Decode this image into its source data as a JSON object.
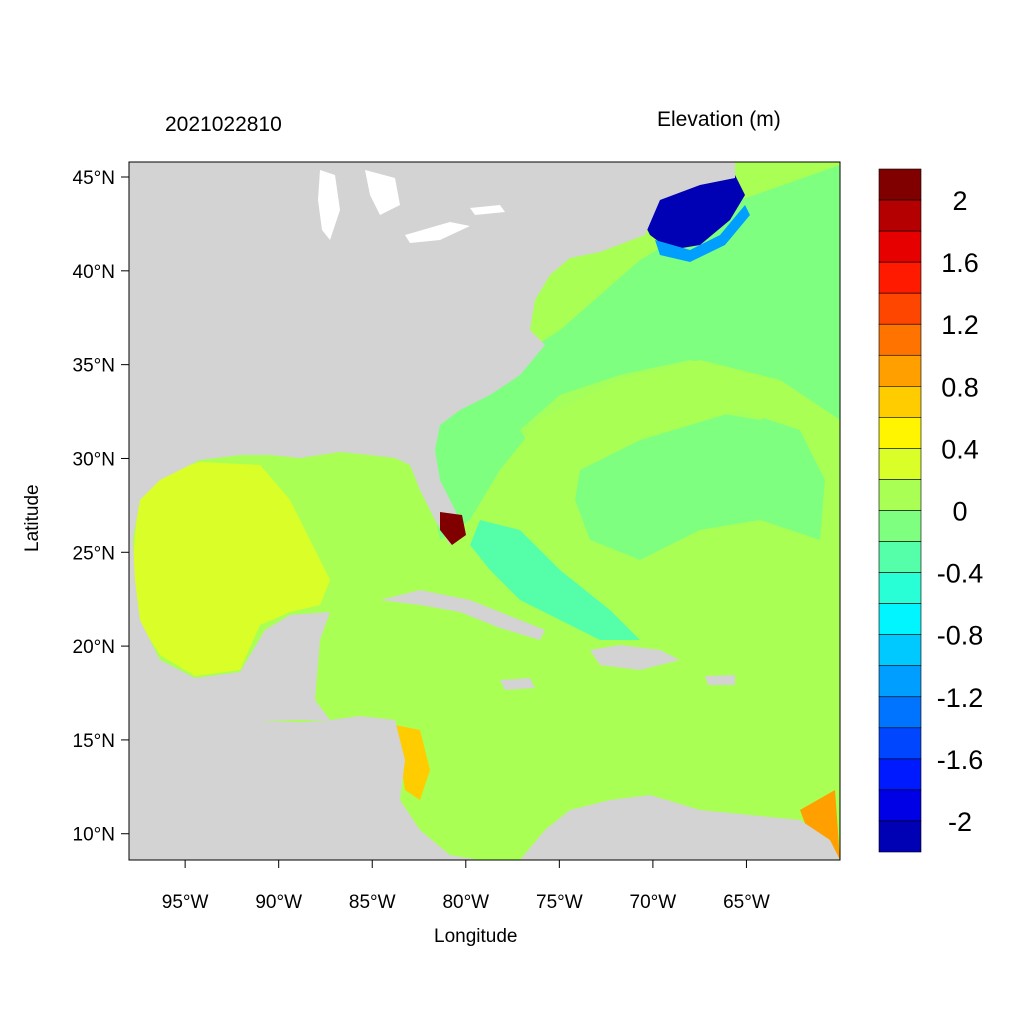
{
  "title_left": "2021022810",
  "title_right": "Elevation (m)",
  "xlabel": "Longitude",
  "ylabel": "Latitude",
  "map": {
    "projection": "equirectangular",
    "lon_range": [
      -98,
      -60
    ],
    "lat_range": [
      8.6,
      45.8
    ],
    "land_color": "#D3D3D3",
    "lakes_color": "#FFFFFF",
    "x_ticks": [
      {
        "lon": -95,
        "label": "95°W"
      },
      {
        "lon": -90,
        "label": "90°W"
      },
      {
        "lon": -85,
        "label": "85°W"
      },
      {
        "lon": -80,
        "label": "80°W"
      },
      {
        "lon": -75,
        "label": "75°W"
      },
      {
        "lon": -70,
        "label": "70°W"
      },
      {
        "lon": -65,
        "label": "65°W"
      }
    ],
    "y_ticks": [
      {
        "lat": 45,
        "label": "45°N"
      },
      {
        "lat": 40,
        "label": "40°N"
      },
      {
        "lat": 35,
        "label": "35°N"
      },
      {
        "lat": 30,
        "label": "30°N"
      },
      {
        "lat": 25,
        "label": "25°N"
      },
      {
        "lat": 20,
        "label": "20°N"
      },
      {
        "lat": 15,
        "label": "15°N"
      },
      {
        "lat": 10,
        "label": "10°N"
      }
    ]
  },
  "colorbar": {
    "colors": [
      "#800000",
      "#B40000",
      "#E60000",
      "#FF1A00",
      "#FF4600",
      "#FF7300",
      "#FF9F00",
      "#FFCC00",
      "#FFF500",
      "#DAFF28",
      "#AAFF55",
      "#7FFF80",
      "#55FFAA",
      "#28FFD6",
      "#00F5FF",
      "#00C9FF",
      "#009FFF",
      "#0073FF",
      "#0046FF",
      "#001AFF",
      "#0000E6",
      "#0000B4"
    ],
    "labels": [
      "2",
      "1.6",
      "1.2",
      "0.8",
      "0.4",
      "0",
      "-0.4",
      "-0.8",
      "-1.2",
      "-1.6",
      "-2"
    ]
  }
}
